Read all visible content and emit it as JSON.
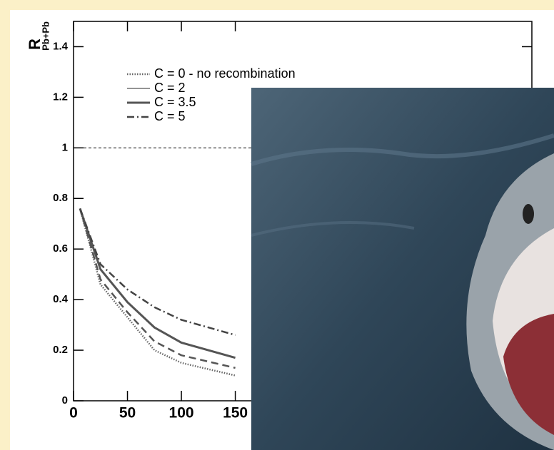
{
  "chart_data": {
    "type": "line",
    "y_label": "R",
    "y_label_sub": "Pb+Pb",
    "xlim": [
      0,
      425
    ],
    "ylim": [
      0,
      1.5
    ],
    "xticks": [
      0,
      50,
      100,
      150
    ],
    "yticks": [
      0,
      0.2,
      0.4,
      0.6,
      0.8,
      1,
      1.2,
      1.4
    ],
    "hline": 1,
    "x": [
      6,
      25,
      50,
      75,
      100,
      150
    ],
    "series": [
      {
        "name": "C = 0 - no recombination",
        "color": "#666666",
        "style": "dotted",
        "values": [
          0.76,
          0.46,
          0.33,
          0.2,
          0.15,
          0.1
        ]
      },
      {
        "name": "C = 2",
        "color": "#555555",
        "style": "dashed",
        "values": [
          0.76,
          0.48,
          0.35,
          0.235,
          0.18,
          0.13
        ]
      },
      {
        "name": "C = 3.5",
        "color": "#555555",
        "style": "thick",
        "values": [
          0.76,
          0.52,
          0.39,
          0.29,
          0.23,
          0.17
        ]
      },
      {
        "name": "C = 5",
        "color": "#444444",
        "style": "dashdot",
        "values": [
          0.76,
          0.54,
          0.44,
          0.37,
          0.32,
          0.26
        ]
      }
    ]
  }
}
